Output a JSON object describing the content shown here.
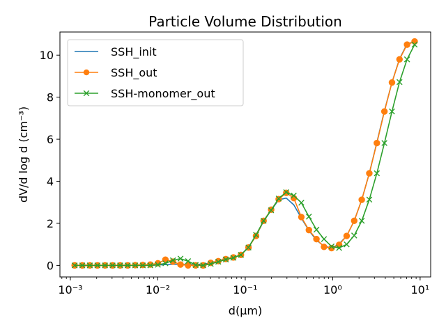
{
  "chart_data": {
    "type": "line",
    "title": "Particle Volume Distribution",
    "xlabel": "d(μm)",
    "ylabel": "dV/d log d (cm⁻³)",
    "xscale": "log",
    "xlim": [
      0.00076,
      13.2
    ],
    "ylim": [
      -0.55,
      11.1
    ],
    "xticks": [
      0.001,
      0.01,
      0.1,
      1,
      10
    ],
    "xtick_labels": [
      "10⁻³",
      "10⁻²",
      "10⁻¹",
      "10⁰",
      "10¹"
    ],
    "yticks": [
      0,
      2,
      4,
      6,
      8,
      10
    ],
    "grid": false,
    "legend_position": "upper left",
    "x": [
      0.00112,
      0.00137,
      0.00167,
      0.00204,
      0.00249,
      0.00304,
      0.00371,
      0.00452,
      0.00552,
      0.00673,
      0.00821,
      0.01002,
      0.01222,
      0.01491,
      0.01819,
      0.02219,
      0.02708,
      0.03303,
      0.0403,
      0.04917,
      0.05999,
      0.07318,
      0.08928,
      0.10892,
      0.13289,
      0.16212,
      0.19779,
      0.24131,
      0.2944,
      0.35917,
      0.43818,
      0.53459,
      0.65219,
      0.79568,
      0.97073,
      1.18429,
      1.44483,
      1.76269,
      2.15049,
      2.62359,
      3.20078,
      3.90496,
      4.76405,
      5.81214,
      7.09081,
      8.65079
    ],
    "series": [
      {
        "name": "SSH_init",
        "color": "#1f77b4",
        "marker": "none",
        "values": [
          0,
          0,
          0,
          0,
          0,
          0,
          0,
          0,
          0,
          0,
          0,
          0.02,
          0.04,
          0.05,
          0.05,
          0.04,
          0.05,
          0.06,
          0.12,
          0.22,
          0.32,
          0.38,
          0.5,
          0.88,
          1.4,
          2.1,
          2.62,
          3.12,
          3.2,
          2.88,
          2.25,
          1.66,
          1.2,
          0.92,
          0.82,
          1.02,
          1.4,
          2.12,
          3.12,
          4.38,
          5.85,
          7.35,
          8.7,
          9.82,
          10.53,
          10.65
        ]
      },
      {
        "name": "SSH_out",
        "color": "#ff7f0e",
        "marker": "circle",
        "values": [
          0,
          0,
          0,
          0,
          0,
          0,
          0,
          0,
          0.01,
          0.02,
          0.04,
          0.1,
          0.27,
          0.18,
          0.04,
          0,
          0,
          0,
          0.12,
          0.2,
          0.3,
          0.38,
          0.5,
          0.85,
          1.4,
          2.12,
          2.65,
          3.15,
          3.45,
          3.2,
          2.3,
          1.68,
          1.25,
          0.88,
          0.82,
          0.98,
          1.4,
          2.12,
          3.12,
          4.38,
          5.82,
          7.32,
          8.7,
          9.8,
          10.5,
          10.65
        ]
      },
      {
        "name": "SSH-monomer_out",
        "color": "#2ca02c",
        "marker": "x",
        "values": [
          0,
          0,
          0,
          0,
          0,
          0,
          0,
          0,
          0,
          0,
          0,
          0.03,
          0.1,
          0.24,
          0.32,
          0.2,
          0.02,
          0,
          0.07,
          0.17,
          0.28,
          0.36,
          0.5,
          0.85,
          1.45,
          2.12,
          2.62,
          3.18,
          3.48,
          3.32,
          2.98,
          2.32,
          1.7,
          1.25,
          0.9,
          0.83,
          1.0,
          1.42,
          2.12,
          3.13,
          4.38,
          5.82,
          7.32,
          8.72,
          9.8,
          10.5
        ]
      }
    ]
  }
}
